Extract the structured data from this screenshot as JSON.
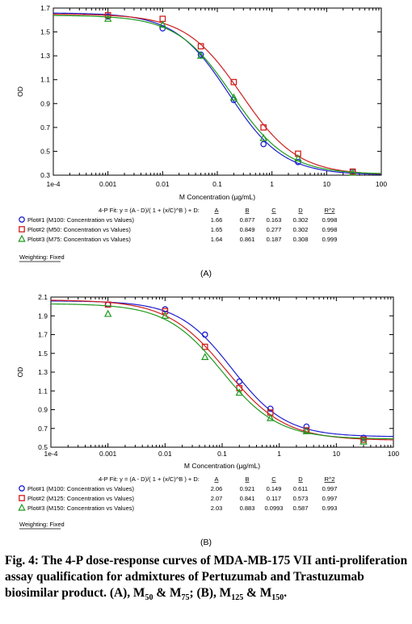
{
  "chart_data": [
    {
      "type": "line",
      "panel_label": "(A)",
      "xlabel": "M Concentration (µg/mL)",
      "ylabel": "OD",
      "xscale": "log",
      "xlim": [
        0.0001,
        100
      ],
      "ylim": [
        0.3,
        1.7
      ],
      "x_ticks": [
        "1e-4",
        "0.001",
        "0.01",
        "0.1",
        "1",
        "10",
        "100"
      ],
      "y_ticks": [
        "0.3",
        "0.5",
        "0.7",
        "0.9",
        "1.1",
        "1.3",
        "1.5",
        "1.7"
      ],
      "fit_equation": "4-P Fit: y = (A - D)/( 1 + (x/C)^B ) + D:",
      "param_headers": [
        "A",
        "B",
        "C",
        "D",
        "R^2"
      ],
      "series": [
        {
          "name": "Plot#1 (M100: Concentration vs Values)",
          "marker": "circle",
          "color": "#1f1fd0",
          "params": {
            "A": "1.66",
            "B": "0.877",
            "C": "0.163",
            "D": "0.302",
            "R2": "0.998"
          },
          "points": [
            [
              0.001,
              1.63
            ],
            [
              0.01,
              1.53
            ],
            [
              0.05,
              1.31
            ],
            [
              0.2,
              0.93
            ],
            [
              0.7,
              0.56
            ],
            [
              3,
              0.41
            ],
            [
              30,
              0.33
            ]
          ]
        },
        {
          "name": "Plot#2 (M50: Concentration vs Values)",
          "marker": "square",
          "color": "#d01f1f",
          "params": {
            "A": "1.65",
            "B": "0.849",
            "C": "0.277",
            "D": "0.302",
            "R2": "0.998"
          },
          "points": [
            [
              0.001,
              1.64
            ],
            [
              0.01,
              1.61
            ],
            [
              0.05,
              1.38
            ],
            [
              0.2,
              1.08
            ],
            [
              0.7,
              0.7
            ],
            [
              3,
              0.48
            ],
            [
              30,
              0.33
            ]
          ]
        },
        {
          "name": "Plot#3 (M75: Concentration vs Values)",
          "marker": "triangle",
          "color": "#1f9a1f",
          "params": {
            "A": "1.64",
            "B": "0.861",
            "C": "0.187",
            "D": "0.308",
            "R2": "0.999"
          },
          "points": [
            [
              0.001,
              1.61
            ],
            [
              0.01,
              1.56
            ],
            [
              0.05,
              1.3
            ],
            [
              0.2,
              0.95
            ],
            [
              0.7,
              0.61
            ],
            [
              3,
              0.44
            ],
            [
              30,
              0.32
            ]
          ]
        }
      ],
      "weighting": "Weighting: Fixed"
    },
    {
      "type": "line",
      "panel_label": "(B)",
      "xlabel": "M Concentration (µg/mL)",
      "ylabel": "OD",
      "xscale": "log",
      "xlim": [
        0.0001,
        100
      ],
      "ylim": [
        0.5,
        2.1
      ],
      "x_ticks": [
        "1e-4",
        "0.001",
        "0.01",
        "0.1",
        "1",
        "10",
        "100"
      ],
      "y_ticks": [
        "0.5",
        "0.7",
        "0.9",
        "1.1",
        "1.3",
        "1.5",
        "1.7",
        "1.9",
        "2.1"
      ],
      "fit_equation": "4-P Fit: y = (A - D)/( 1 + (x/C)^B ) + D:",
      "param_headers": [
        "A",
        "B",
        "C",
        "D",
        "R^2"
      ],
      "series": [
        {
          "name": "Plot#1 (M100: Concentration vs Values)",
          "marker": "circle",
          "color": "#1f1fd0",
          "params": {
            "A": "2.06",
            "B": "0.921",
            "C": "0.149",
            "D": "0.611",
            "R2": "0.997"
          },
          "points": [
            [
              0.001,
              2.02
            ],
            [
              0.01,
              1.97
            ],
            [
              0.05,
              1.7
            ],
            [
              0.2,
              1.2
            ],
            [
              0.7,
              0.91
            ],
            [
              3,
              0.72
            ],
            [
              30,
              0.6
            ]
          ]
        },
        {
          "name": "Plot#2 (M125: Concentration vs Values)",
          "marker": "square",
          "color": "#d01f1f",
          "params": {
            "A": "2.07",
            "B": "0.841",
            "C": "0.117",
            "D": "0.573",
            "R2": "0.997"
          },
          "points": [
            [
              0.001,
              2.02
            ],
            [
              0.01,
              1.95
            ],
            [
              0.05,
              1.57
            ],
            [
              0.2,
              1.13
            ],
            [
              0.7,
              0.87
            ],
            [
              3,
              0.68
            ],
            [
              30,
              0.58
            ]
          ]
        },
        {
          "name": "Plot#3 (M150: Concentration vs Values)",
          "marker": "triangle",
          "color": "#1f9a1f",
          "params": {
            "A": "2.03",
            "B": "0.883",
            "C": "0.0993",
            "D": "0.587",
            "R2": "0.993"
          },
          "points": [
            [
              0.001,
              1.92
            ],
            [
              0.01,
              1.9
            ],
            [
              0.05,
              1.46
            ],
            [
              0.2,
              1.08
            ],
            [
              0.7,
              0.81
            ],
            [
              3,
              0.67
            ],
            [
              30,
              0.56
            ]
          ]
        }
      ],
      "weighting": "Weighting: Fixed"
    }
  ],
  "caption": {
    "lead": "Fig. 4: The 4-P dose-response curves of MDA-MB-175 VII anti-proliferation assay qualification for admixtures of Pertuzumab and Trastuzumab biosimilar product. (A), M",
    "s1": "50",
    "t1": " & M",
    "s2": "75",
    "t2": "; (B), M",
    "s3": "125",
    "t3": " & M",
    "s4": "150",
    "t4": "."
  }
}
